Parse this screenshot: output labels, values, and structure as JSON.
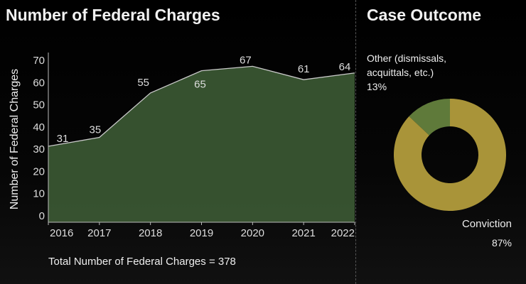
{
  "left_title": "Number of Federal Charges",
  "right_title": "Case Outcome",
  "total_text": "Total Number of Federal Charges = 378",
  "chart_data": [
    {
      "type": "area",
      "ylabel": "Number of Federal Charges",
      "xlabel": "",
      "x": [
        "2016",
        "2017",
        "2018",
        "2019",
        "2020",
        "2021",
        "2022"
      ],
      "values": [
        31,
        35,
        55,
        65,
        67,
        61,
        64
      ],
      "data_labels": [
        "31",
        "35",
        "55",
        "65",
        "67",
        "61",
        "64"
      ],
      "yticks": [
        0,
        10,
        20,
        30,
        40,
        50,
        60,
        70
      ],
      "ylim": [
        0,
        70
      ],
      "grid": false,
      "fill_color": "#3c5a34",
      "line_color": "#c8c8c8"
    },
    {
      "type": "pie",
      "donut": true,
      "slices": [
        {
          "label": "Other (dismissals, acquittals, etc.)",
          "label_lines": [
            "Other (dismissals,",
            "acquittals, etc.)"
          ],
          "value": 13,
          "value_label": "13%",
          "color": "#5f7a3a"
        },
        {
          "label": "Conviction",
          "value": 87,
          "value_label": "87%",
          "color": "#a99439"
        }
      ]
    }
  ]
}
